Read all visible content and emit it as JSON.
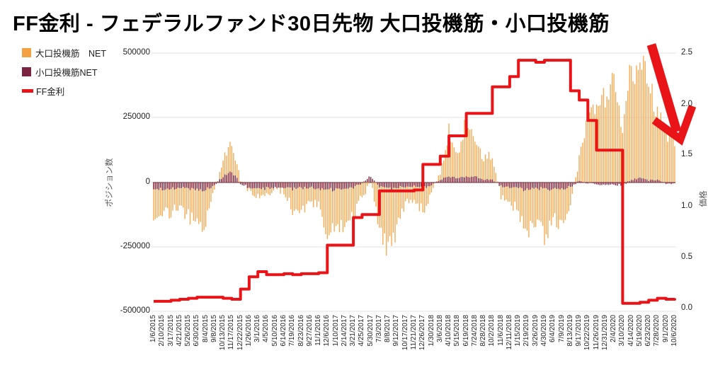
{
  "title": "FF金利 - フェデラルファンド30日先物 大口投機筋・小口投機筋",
  "legend": {
    "items": [
      {
        "label": "大口投機筋　NET",
        "color": "#F5A142",
        "type": "bar"
      },
      {
        "label": "小口投機筋NET",
        "color": "#7C2342",
        "type": "bar"
      },
      {
        "label": "FF金利",
        "color": "#E91418",
        "type": "line"
      }
    ]
  },
  "axes": {
    "left": {
      "title": "ポジション数",
      "ticks": [
        "500000",
        "250000",
        "0",
        "-250000",
        "-500000"
      ],
      "lim": [
        -500000,
        500000
      ]
    },
    "right": {
      "title": "価格",
      "ticks": [
        "2.5",
        "2.0",
        "1.5",
        "1.0",
        "0.5",
        "0.0"
      ],
      "lim": [
        0,
        2.5
      ]
    },
    "grid_color": "#E2E2E2"
  },
  "annotation": {
    "name": "hand-drawn-down-arrow",
    "color": "#E91418"
  },
  "chart_data": {
    "type": "bar",
    "note": "combo chart: two weekly NET-position bar series on left axis, stepped FF rate line on right axis; values sampled at each labeled tick (every 5 weeks)",
    "categories": [
      "1/6/2015",
      "2/10/2015",
      "3/17/2015",
      "4/21/2015",
      "5/26/2015",
      "6/30/2015",
      "8/4/2015",
      "9/8/2015",
      "10/13/2015",
      "11/17/2015",
      "12/22/2015",
      "1/26/2016",
      "3/1/2016",
      "4/5/2016",
      "5/10/2016",
      "6/14/2016",
      "7/19/2016",
      "8/23/2016",
      "9/27/2016",
      "11/1/2016",
      "12/6/2016",
      "1/10/2017",
      "2/14/2017",
      "3/21/2017",
      "4/25/2017",
      "5/30/2017",
      "7/3/2017",
      "8/8/2017",
      "9/12/2017",
      "10/17/2017",
      "11/21/2017",
      "12/26/2017",
      "1/30/2018",
      "3/6/2018",
      "4/10/2018",
      "5/15/2018",
      "6/19/2018",
      "7/24/2018",
      "8/28/2018",
      "10/2/2018",
      "11/6/2018",
      "12/11/2018",
      "1/15/2019",
      "2/19/2019",
      "3/26/2019",
      "4/30/2019",
      "6/4/2019",
      "7/9/2019",
      "8/13/2019",
      "9/17/2019",
      "10/22/2019",
      "11/26/2019",
      "12/31/2019",
      "2/4/2020",
      "3/10/2020",
      "4/14/2020",
      "5/19/2020",
      "6/23/2020",
      "7/28/2020",
      "9/1/2020",
      "10/6/2020"
    ],
    "series": [
      {
        "name": "大口投機筋　NET",
        "type": "bar",
        "axis": "left",
        "color": "#F5A142",
        "values": [
          -125000,
          -145000,
          -110000,
          -100000,
          -135000,
          -150000,
          -170000,
          -30000,
          80000,
          150000,
          10000,
          -30000,
          -50000,
          -60000,
          -15000,
          -40000,
          -110000,
          -120000,
          -75000,
          -95000,
          -215000,
          -185000,
          -170000,
          -120000,
          -60000,
          10000,
          -180000,
          -270000,
          -170000,
          -90000,
          -70000,
          -110000,
          -40000,
          40000,
          190000,
          100000,
          230000,
          160000,
          80000,
          100000,
          -50000,
          -80000,
          -120000,
          -195000,
          -150000,
          -220000,
          -140000,
          -180000,
          -90000,
          100000,
          230000,
          300000,
          360000,
          370000,
          230000,
          430000,
          470000,
          380000,
          280000,
          190000,
          150000
        ]
      },
      {
        "name": "小口投機筋NET",
        "type": "bar",
        "axis": "left",
        "color": "#7C2342",
        "values": [
          -25000,
          -28000,
          -25000,
          -22000,
          -25000,
          -28000,
          -30000,
          -15000,
          25000,
          40000,
          -5000,
          -20000,
          -25000,
          -22000,
          -18000,
          -20000,
          -25000,
          -25000,
          -20000,
          -22000,
          -30000,
          -28000,
          -25000,
          -20000,
          -5000,
          25000,
          -20000,
          -25000,
          -22000,
          -18000,
          -15000,
          -20000,
          -12000,
          10000,
          20000,
          18000,
          22000,
          20000,
          12000,
          8000,
          -15000,
          -20000,
          -25000,
          -28000,
          -25000,
          -28000,
          -25000,
          -25000,
          -20000,
          5000,
          -5000,
          -8000,
          -10000,
          -10000,
          -12000,
          10000,
          15000,
          8000,
          10000,
          -5000,
          -5000
        ]
      },
      {
        "name": "FF金利",
        "type": "line",
        "axis": "right",
        "color": "#E91418",
        "values": [
          0.07,
          0.07,
          0.08,
          0.09,
          0.1,
          0.11,
          0.11,
          0.11,
          0.1,
          0.09,
          0.19,
          0.31,
          0.36,
          0.33,
          0.33,
          0.34,
          0.33,
          0.34,
          0.34,
          0.35,
          0.62,
          0.62,
          0.62,
          0.89,
          0.92,
          0.92,
          1.15,
          1.15,
          1.15,
          1.15,
          1.16,
          1.41,
          1.41,
          1.49,
          1.69,
          1.69,
          1.91,
          1.91,
          1.91,
          2.17,
          2.17,
          2.27,
          2.43,
          2.43,
          2.41,
          2.43,
          2.43,
          2.43,
          2.13,
          2.04,
          1.84,
          1.55,
          1.55,
          1.55,
          0.05,
          0.05,
          0.06,
          0.08,
          0.1,
          0.09,
          0.1
        ]
      }
    ],
    "xlabel": "",
    "ylabel_left": "ポジション数",
    "ylabel_right": "価格",
    "ylim_left": [
      -500000,
      500000
    ],
    "ylim_right": [
      0,
      2.5
    ],
    "grid": true,
    "legend_position": "top-left"
  }
}
